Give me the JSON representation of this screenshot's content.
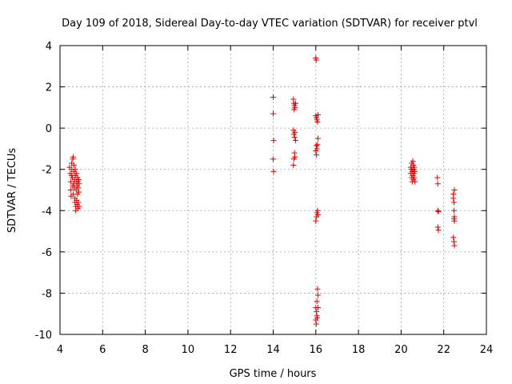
{
  "chart_data": {
    "type": "scatter",
    "title": "Day 109 of 2018, Sidereal Day-to-day VTEC variation (SDTVAR) for receiver ptvl",
    "xlabel": "GPS time / hours",
    "ylabel": "SDTVAR / TECUs",
    "xlim": [
      4,
      24
    ],
    "ylim": [
      -10,
      4
    ],
    "xticks": [
      "4",
      "6",
      "8",
      "10",
      "12",
      "14",
      "16",
      "18",
      "20",
      "22",
      "24"
    ],
    "yticks": [
      "-10",
      "-8",
      "-6",
      "-4",
      "-2",
      "0",
      "2",
      "4"
    ],
    "grid": true,
    "marker": "+",
    "color": "#e00000",
    "series": [
      {
        "name": "SDTVAR",
        "points": [
          [
            4.45,
            -1.9
          ],
          [
            4.48,
            -2.2
          ],
          [
            4.5,
            -2.6
          ],
          [
            4.5,
            -3.0
          ],
          [
            4.52,
            -3.3
          ],
          [
            4.55,
            -1.7
          ],
          [
            4.55,
            -2.0
          ],
          [
            4.58,
            -2.4
          ],
          [
            4.6,
            -1.5
          ],
          [
            4.6,
            -2.8
          ],
          [
            4.62,
            -3.2
          ],
          [
            4.62,
            -1.4
          ],
          [
            4.65,
            -1.8
          ],
          [
            4.65,
            -2.1
          ],
          [
            4.68,
            -2.5
          ],
          [
            4.68,
            -2.9
          ],
          [
            4.7,
            -3.4
          ],
          [
            4.7,
            -3.6
          ],
          [
            4.72,
            -2.0
          ],
          [
            4.72,
            -2.3
          ],
          [
            4.74,
            -3.8
          ],
          [
            4.74,
            -4.0
          ],
          [
            4.76,
            -2.6
          ],
          [
            4.76,
            -3.0
          ],
          [
            4.78,
            -2.2
          ],
          [
            4.78,
            -3.5
          ],
          [
            4.8,
            -2.8
          ],
          [
            4.8,
            -3.7
          ],
          [
            4.82,
            -2.4
          ],
          [
            4.82,
            -3.2
          ],
          [
            4.84,
            -2.6
          ],
          [
            4.84,
            -3.9
          ],
          [
            4.86,
            -2.9
          ],
          [
            4.86,
            -3.6
          ],
          [
            4.88,
            -2.5
          ],
          [
            4.88,
            -3.1
          ],
          [
            4.9,
            -2.7
          ],
          [
            4.9,
            -3.8
          ],
          [
            4.65,
            -2.7
          ],
          [
            4.55,
            -2.3
          ],
          [
            14.0,
            1.5
          ],
          [
            14.0,
            0.7
          ],
          [
            14.02,
            -0.6
          ],
          [
            14.0,
            -1.5
          ],
          [
            14.02,
            -2.1
          ],
          [
            14.95,
            1.4
          ],
          [
            14.97,
            1.2
          ],
          [
            15.0,
            1.1
          ],
          [
            14.98,
            0.9
          ],
          [
            15.02,
            1.0
          ],
          [
            14.95,
            -0.1
          ],
          [
            14.97,
            -0.3
          ],
          [
            15.0,
            -0.45
          ],
          [
            15.02,
            -0.2
          ],
          [
            15.05,
            -0.6
          ],
          [
            15.0,
            -1.2
          ],
          [
            14.97,
            -1.5
          ],
          [
            15.02,
            -1.4
          ],
          [
            14.95,
            -1.8
          ],
          [
            15.05,
            1.2
          ],
          [
            16.0,
            3.4
          ],
          [
            16.02,
            3.3
          ],
          [
            16.0,
            0.6
          ],
          [
            16.03,
            0.5
          ],
          [
            16.05,
            0.4
          ],
          [
            16.08,
            0.3
          ],
          [
            16.1,
            0.65
          ],
          [
            16.02,
            -0.85
          ],
          [
            16.05,
            -1.0
          ],
          [
            16.08,
            -0.8
          ],
          [
            16.0,
            -1.1
          ],
          [
            16.1,
            -0.5
          ],
          [
            16.03,
            -1.3
          ],
          [
            16.0,
            -4.5
          ],
          [
            16.03,
            -4.3
          ],
          [
            16.05,
            -4.1
          ],
          [
            16.08,
            -4.0
          ],
          [
            16.1,
            -4.2
          ],
          [
            16.08,
            -7.8
          ],
          [
            16.1,
            -8.1
          ],
          [
            16.05,
            -8.4
          ],
          [
            16.0,
            -8.7
          ],
          [
            16.03,
            -8.9
          ],
          [
            16.05,
            -9.1
          ],
          [
            16.0,
            -9.3
          ],
          [
            16.02,
            -9.5
          ],
          [
            16.1,
            -8.7
          ],
          [
            16.07,
            -9.2
          ],
          [
            20.45,
            -1.9
          ],
          [
            20.45,
            -2.2
          ],
          [
            20.48,
            -2.0
          ],
          [
            20.5,
            -1.7
          ],
          [
            20.5,
            -2.4
          ],
          [
            20.52,
            -2.1
          ],
          [
            20.52,
            -2.6
          ],
          [
            20.55,
            -1.6
          ],
          [
            20.55,
            -2.3
          ],
          [
            20.58,
            -1.8
          ],
          [
            20.58,
            -2.5
          ],
          [
            20.6,
            -2.0
          ],
          [
            20.6,
            -2.2
          ],
          [
            20.62,
            -1.9
          ],
          [
            20.62,
            -2.4
          ],
          [
            20.65,
            -2.1
          ],
          [
            20.65,
            -2.6
          ],
          [
            20.55,
            -2.0
          ],
          [
            21.7,
            -2.4
          ],
          [
            21.72,
            -2.7
          ],
          [
            21.72,
            -4.0
          ],
          [
            21.75,
            -4.05
          ],
          [
            21.72,
            -4.8
          ],
          [
            21.75,
            -4.95
          ],
          [
            22.45,
            -3.2
          ],
          [
            22.45,
            -3.4
          ],
          [
            22.48,
            -3.6
          ],
          [
            22.48,
            -4.0
          ],
          [
            22.5,
            -4.3
          ],
          [
            22.5,
            -4.5
          ],
          [
            22.45,
            -5.3
          ],
          [
            22.48,
            -5.5
          ],
          [
            22.5,
            -5.7
          ],
          [
            22.5,
            -3.0
          ],
          [
            22.48,
            -4.4
          ]
        ]
      }
    ]
  }
}
